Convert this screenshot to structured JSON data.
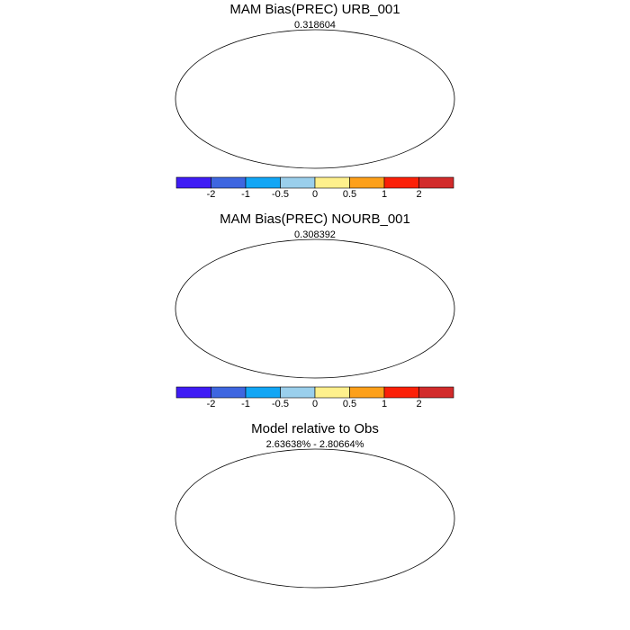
{
  "panels": [
    {
      "title": "MAM Bias(PREC) URB_001",
      "subtitle": "0.318604"
    },
    {
      "title": "MAM Bias(PREC) NOURB_001",
      "subtitle": "0.308392"
    },
    {
      "title": "Model relative to Obs",
      "subtitle": "2.63638% - 2.80664%"
    }
  ],
  "colorbar": {
    "colors": [
      "#3f1cf5",
      "#3e66e0",
      "#12a6f5",
      "#9acfec",
      "#fef08c",
      "#fda01a",
      "#fb2008",
      "#d22b2b"
    ],
    "labels": [
      "-2",
      "-1",
      "-0.5",
      "0",
      "0.5",
      "1",
      "2"
    ]
  },
  "map_colors": {
    "land_outline": "#000000",
    "wet_strong": "#3f1cf5",
    "wet_medium": "#3e66e0",
    "dry_light": "#fef08c",
    "dry_medium": "#fda01a",
    "dry_strong": "#fb2008",
    "diff_positive": "#e01010",
    "diff_negative": "#22dd22"
  }
}
